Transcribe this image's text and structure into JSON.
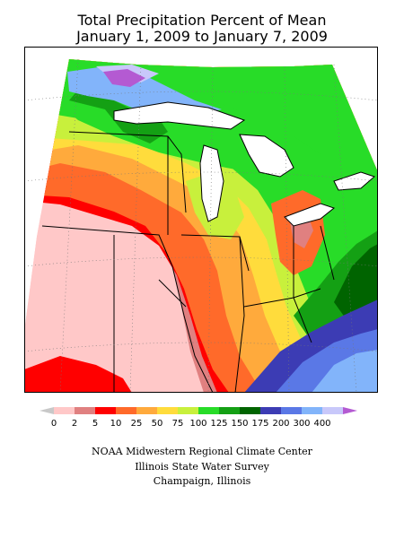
{
  "title_line1": "Total Precipitation Percent of Mean",
  "title_line2": "January 1, 2009 to January 7, 2009",
  "legend": {
    "colors": [
      "#c8c8c8",
      "#ffc8c8",
      "#e08080",
      "#ff0000",
      "#ff6a2a",
      "#ffaa3c",
      "#ffdc3c",
      "#c8f03c",
      "#28dc28",
      "#14a014",
      "#006400",
      "#3c3cb4",
      "#5a78e6",
      "#82b4fa",
      "#c8c8fa",
      "#b45ad2"
    ],
    "labels": [
      "0",
      "2",
      "5",
      "10",
      "25",
      "50",
      "75",
      "100",
      "125",
      "150",
      "175",
      "200",
      "300",
      "400"
    ]
  },
  "credits": {
    "line1": "NOAA Midwestern Regional Climate Center",
    "line2": "Illinois State Water Survey",
    "line3": "Champaign, Illinois"
  }
}
